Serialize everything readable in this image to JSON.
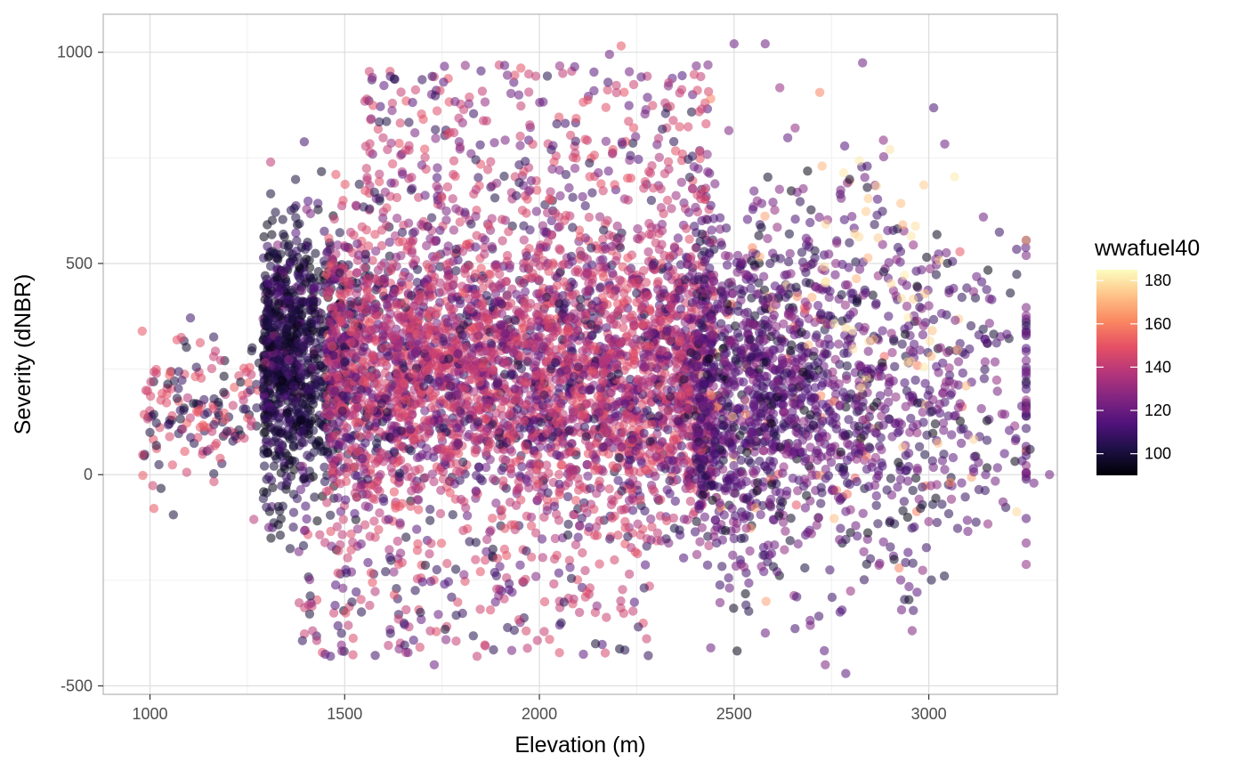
{
  "chart_data": {
    "type": "scatter",
    "title": "",
    "xlabel": "Elevation (m)",
    "ylabel": "Severity (dNBR)",
    "xlim": [
      880,
      3330
    ],
    "ylim": [
      -520,
      1090
    ],
    "x_ticks": [
      1000,
      1500,
      2000,
      2500,
      3000
    ],
    "y_ticks": [
      -500,
      0,
      500,
      1000
    ],
    "x_tick_labels": [
      "1000",
      "1500",
      "2000",
      "2500",
      "3000"
    ],
    "y_tick_labels": [
      "-500",
      "0",
      "500",
      "1000"
    ],
    "grid": true,
    "point_alpha": 0.55,
    "color_scale": {
      "name": "wwafuel40",
      "palette": "magma",
      "range": [
        90,
        185
      ],
      "breaks": [
        100,
        120,
        140,
        160,
        180
      ],
      "break_labels": [
        "100",
        "120",
        "140",
        "160",
        "180"
      ],
      "stops": [
        "#000004",
        "#1c1044",
        "#4f127b",
        "#812581",
        "#b5367a",
        "#e55064",
        "#fb8761",
        "#fec287",
        "#fcfdbf"
      ]
    },
    "legend_position": "right",
    "sample_points": [
      {
        "x": 980,
        "y": 340,
        "c": 150
      },
      {
        "x": 1000,
        "y": 100,
        "c": 100
      },
      {
        "x": 1010,
        "y": -80,
        "c": 150
      },
      {
        "x": 1060,
        "y": -95,
        "c": 100
      },
      {
        "x": 1120,
        "y": 150,
        "c": 150
      },
      {
        "x": 1310,
        "y": 740,
        "c": 140
      },
      {
        "x": 1310,
        "y": 665,
        "c": 100
      },
      {
        "x": 1360,
        "y": -175,
        "c": 100
      },
      {
        "x": 1410,
        "y": -330,
        "c": 100
      },
      {
        "x": 1610,
        "y": 770,
        "c": 140
      },
      {
        "x": 1720,
        "y": -370,
        "c": 140
      },
      {
        "x": 1730,
        "y": -450,
        "c": 120
      },
      {
        "x": 1840,
        "y": -430,
        "c": 140
      },
      {
        "x": 2060,
        "y": 950,
        "c": 140
      },
      {
        "x": 2180,
        "y": 995,
        "c": 120
      },
      {
        "x": 2210,
        "y": 1015,
        "c": 150
      },
      {
        "x": 2500,
        "y": 1020,
        "c": 120
      },
      {
        "x": 2580,
        "y": 1020,
        "c": 120
      },
      {
        "x": 2440,
        "y": 890,
        "c": 160
      },
      {
        "x": 2720,
        "y": 905,
        "c": 160
      },
      {
        "x": 2830,
        "y": 975,
        "c": 120
      },
      {
        "x": 2900,
        "y": 770,
        "c": 180
      },
      {
        "x": 2700,
        "y": 420,
        "c": 170
      },
      {
        "x": 2440,
        "y": -410,
        "c": 120
      },
      {
        "x": 2930,
        "y": -320,
        "c": 120
      },
      {
        "x": 3040,
        "y": -240,
        "c": 100
      },
      {
        "x": 3140,
        "y": 610,
        "c": 120
      },
      {
        "x": 3310,
        "y": 0,
        "c": 120
      },
      {
        "x": 3270,
        "y": -20,
        "c": 120
      },
      {
        "x": 3260,
        "y": 60,
        "c": 100
      }
    ]
  }
}
